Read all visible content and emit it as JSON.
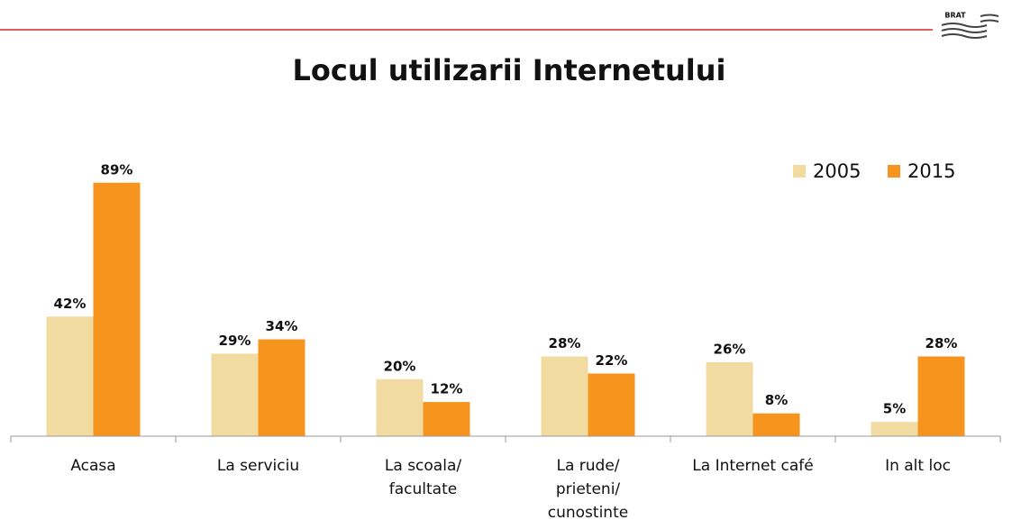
{
  "logo": "BRAT",
  "chart_data": {
    "type": "bar",
    "title": "Locul utilizarii Internetului",
    "categories": [
      [
        "Acasa"
      ],
      [
        "La serviciu"
      ],
      [
        "La scoala/",
        "facultate"
      ],
      [
        "La rude/",
        "prieteni/",
        "cunostinte"
      ],
      [
        "La Internet café"
      ],
      [
        "In alt loc"
      ]
    ],
    "series": [
      {
        "name": "2005",
        "color": "#f2dba0",
        "values": [
          42,
          29,
          20,
          28,
          26,
          5
        ],
        "value_labels": [
          "42%",
          "29%",
          "20%",
          "28%",
          "26%",
          "5%"
        ]
      },
      {
        "name": "2015",
        "color": "#f7941d",
        "values": [
          89,
          34,
          12,
          22,
          8,
          28
        ],
        "value_labels": [
          "89%",
          "34%",
          "12%",
          "22%",
          "8%",
          "28%"
        ]
      }
    ],
    "ylim": [
      0,
      100
    ],
    "legend": "top-right"
  }
}
